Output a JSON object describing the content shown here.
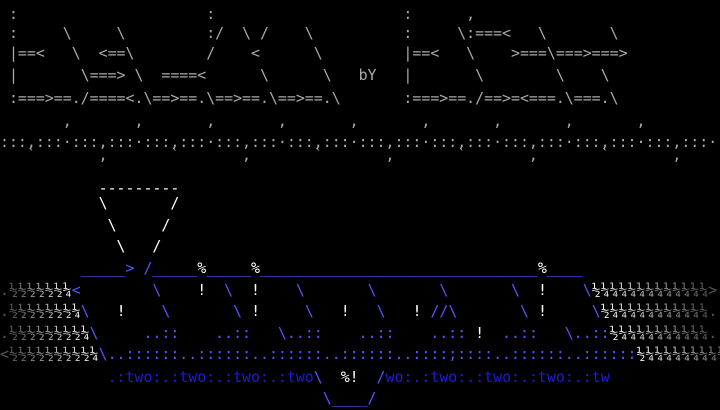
{
  "colors": {
    "gray": "#aaaaaa",
    "dim": "#555555",
    "white": "#ffffff",
    "blue": "#5555ff",
    "darkblue": "#1c1cd8"
  },
  "lines": [
    {
      "name": "title-row-1",
      "segments": [
        {
          "t": " :                     :                     :      ,",
          "c": "gray"
        }
      ]
    },
    {
      "name": "title-row-2",
      "segments": [
        {
          "t": " :     \\     \\         :/  \\ /    \\          :     \\:===<   \\       \\",
          "c": "gray"
        }
      ]
    },
    {
      "name": "title-row-3",
      "segments": [
        {
          "t": " |==<   \\  <==\\        /    <      \\         |==<   \\    >===\\===>===>",
          "c": "gray"
        }
      ]
    },
    {
      "name": "title-row-4",
      "segments": [
        {
          "t": " |       \\===> \\  ====<      \\      \\   bY   |       \\        \\    \\",
          "c": "gray"
        }
      ]
    },
    {
      "name": "title-row-5",
      "segments": [
        {
          "t": " :===>==./====<.\\==>==.\\==>==.\\==>==.\\       :===>==./==>=<===.\\===.\\",
          "c": "gray"
        }
      ]
    },
    {
      "name": "divider-commas",
      "segments": [
        {
          "t": "       ,       ,       ,       ,       ,       ,       ,       ,       ,",
          "c": "gray"
        }
      ]
    },
    {
      "name": "divider-colons",
      "segments": [
        {
          "t": ":::,:::·:::,:::·:::,:::·:::,:::·:::,:::·:::,:::·:::,:::·:::,:::·:::,:::·:::,:::·",
          "c": "gray"
        }
      ]
    },
    {
      "name": "divider-ticks",
      "segments": [
        {
          "t": "   `       ,       `       ,       `       ,       `       ,       `       ,",
          "c": "gray"
        }
      ]
    },
    {
      "name": "funnel-top",
      "segments": [
        {
          "t": "           ---------",
          "c": "white"
        }
      ]
    },
    {
      "name": "funnel-row-1",
      "segments": [
        {
          "t": "           \\       /",
          "c": "white"
        }
      ]
    },
    {
      "name": "funnel-row-2",
      "segments": [
        {
          "t": "            \\     /",
          "c": "white"
        }
      ]
    },
    {
      "name": "funnel-row-3",
      "segments": [
        {
          "t": "             \\   /",
          "c": "white"
        }
      ]
    },
    {
      "name": "water-surface",
      "segments": [
        {
          "t": "         _____> /_____",
          "c": "blue"
        },
        {
          "t": "%",
          "c": "white"
        },
        {
          "t": "_____",
          "c": "blue"
        },
        {
          "t": "%",
          "c": "white"
        },
        {
          "t": "_______________________________",
          "c": "blue"
        },
        {
          "t": "%",
          "c": "white"
        },
        {
          "t": "____",
          "c": "blue"
        }
      ]
    },
    {
      "name": "scene-row-1",
      "segments": [
        {
          "t": ".",
          "c": "dim"
        },
        {
          "t": "½½½½½½¼",
          "g": [
            "#555555",
            "#ffffff"
          ]
        },
        {
          "t": "<",
          "c": "blue"
        },
        {
          "t": "        \\    ",
          "c": "blue"
        },
        {
          "t": "!",
          "c": "white"
        },
        {
          "t": "  \\  ",
          "c": "blue"
        },
        {
          "t": "!",
          "c": "white"
        },
        {
          "t": "    \\       \\       \\       \\  ",
          "c": "blue"
        },
        {
          "t": "!",
          "c": "white"
        },
        {
          "t": "    \\",
          "c": "blue"
        },
        {
          "t": "½¼¼¼¼¼¼¼¼¼¼¼¼",
          "g": [
            "#ffffff",
            "#555555"
          ]
        },
        {
          "t": ">",
          "c": "dim"
        }
      ]
    },
    {
      "name": "scene-row-2",
      "segments": [
        {
          "t": ".",
          "c": "dim"
        },
        {
          "t": "½½½½½½½¼",
          "g": [
            "#555555",
            "#ffffff"
          ]
        },
        {
          "t": "\\   ",
          "c": "blue"
        },
        {
          "t": "!",
          "c": "white"
        },
        {
          "t": "    \\       \\ ",
          "c": "blue"
        },
        {
          "t": "!",
          "c": "white"
        },
        {
          "t": "     \\   ",
          "c": "blue"
        },
        {
          "t": "!",
          "c": "white"
        },
        {
          "t": "   \\   ",
          "c": "blue"
        },
        {
          "t": "!",
          "c": "white"
        },
        {
          "t": " //\\       \\ ",
          "c": "blue"
        },
        {
          "t": "!",
          "c": "white"
        },
        {
          "t": "     \\",
          "c": "blue"
        },
        {
          "t": "½¼¼¼¼¼¼¼¼¼¼¼",
          "g": [
            "#ffffff",
            "#555555"
          ]
        },
        {
          "t": ".",
          "c": "dim"
        }
      ]
    },
    {
      "name": "scene-row-3",
      "segments": [
        {
          "t": ".",
          "c": "dim"
        },
        {
          "t": "½½½½½½½½¼",
          "g": [
            "#555555",
            "#ffffff"
          ]
        },
        {
          "t": "\\     ..::    ..::   \\..::    ..::    ..::",
          "c": "blue"
        },
        {
          "t": " ",
          "c": "blue"
        },
        {
          "t": "!",
          "c": "white"
        },
        {
          "t": "  ..::   \\..::",
          "c": "blue"
        },
        {
          "t": "½¼¼¼¼¼¼¼¼¼¼",
          "g": [
            "#ffffff",
            "#555555"
          ]
        },
        {
          "t": ".",
          "c": "dim"
        }
      ]
    },
    {
      "name": "scene-row-4",
      "segments": [
        {
          "t": "<",
          "c": "dim"
        },
        {
          "t": "½½½½½½½½½¼",
          "g": [
            "#555555",
            "#ffffff"
          ]
        },
        {
          "t": "\\..::::::..::::::..::::::..::::::..::::;::::..::::::..::::::",
          "c": "blue"
        },
        {
          "t": "½¼¼¼¼¼¼¼¼¼¼",
          "g": [
            "#ffffff",
            "#555555"
          ]
        },
        {
          "t": ".",
          "c": "dim"
        }
      ]
    },
    {
      "name": "two-row",
      "segments": [
        {
          "t": "            .:two:.:two:.:two:.:two",
          "c": "darkblue"
        },
        {
          "t": "\\",
          "c": "blue"
        },
        {
          "t": "  ",
          "c": "blue"
        },
        {
          "t": "%!",
          "c": "white"
        },
        {
          "t": "  /",
          "c": "blue"
        },
        {
          "t": "wo:.:two:.:two:.:two:.:tw",
          "c": "darkblue"
        }
      ]
    },
    {
      "name": "bowl-bottom",
      "segments": [
        {
          "t": "                                    \\____/",
          "c": "blue"
        }
      ]
    }
  ]
}
